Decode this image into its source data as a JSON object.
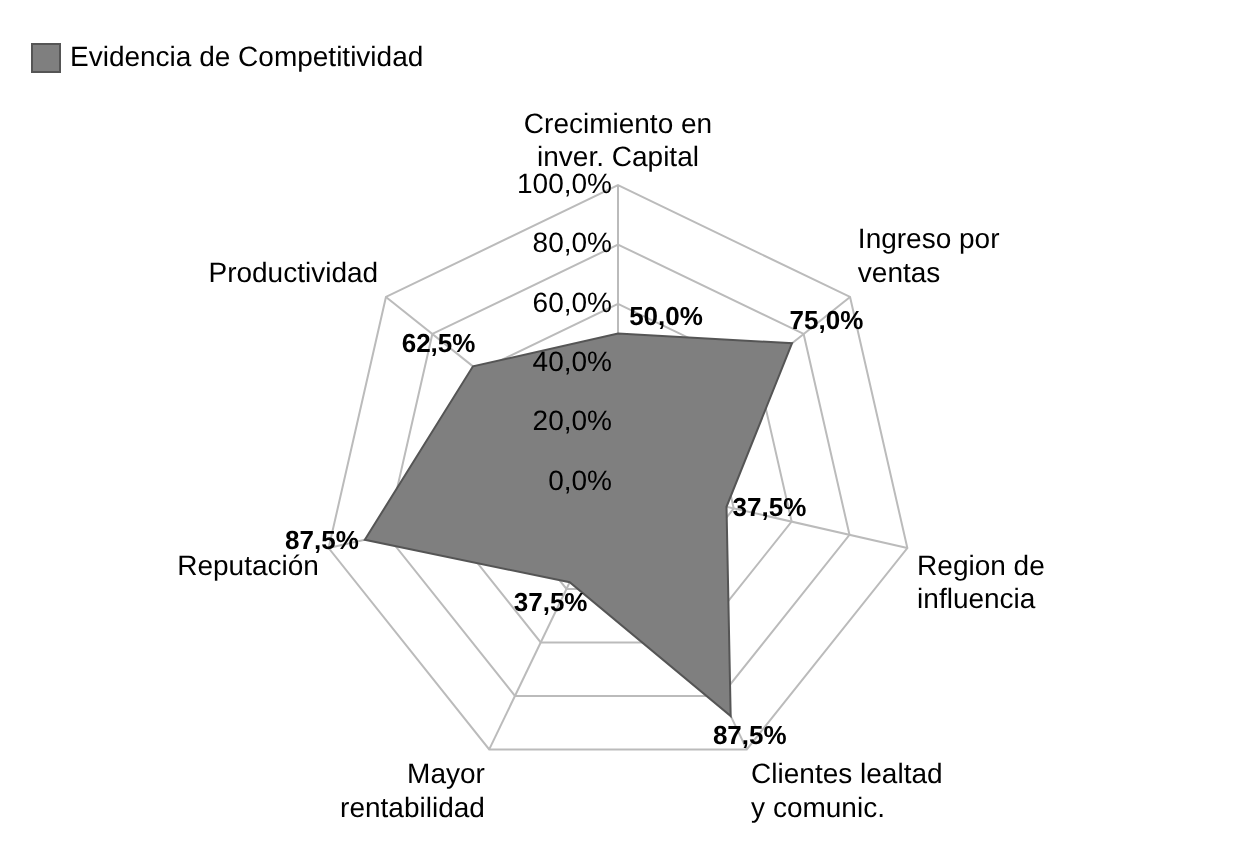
{
  "chart_data": {
    "type": "radar",
    "categories": [
      "Crecimiento en inver.  Capital",
      "Ingreso por ventas",
      "Region de influencia",
      "Clientes lealtad y comunic.",
      "Mayor rentabilidad",
      "Reputación",
      "Productividad"
    ],
    "series": [
      {
        "name": "Evidencia de Competitividad",
        "color": "#7f7f7f",
        "values": [
          50,
          75,
          37.5,
          87.5,
          37.5,
          87.5,
          62.5
        ],
        "value_labels": [
          "50,0%",
          "75,0%",
          "37,5%",
          "87,5%",
          "37,5%",
          "87,5%",
          "62,5%"
        ]
      }
    ],
    "ylim": [
      0,
      100
    ],
    "yticks": [
      {
        "value": 0,
        "label": "0,0%"
      },
      {
        "value": 20,
        "label": "20,0%"
      },
      {
        "value": 40,
        "label": "40,0%"
      },
      {
        "value": 60,
        "label": "60,0%"
      },
      {
        "value": 80,
        "label": "80,0%"
      },
      {
        "value": 100,
        "label": "100,0%"
      }
    ],
    "grid": true,
    "legend": "top left",
    "marker": "none"
  }
}
